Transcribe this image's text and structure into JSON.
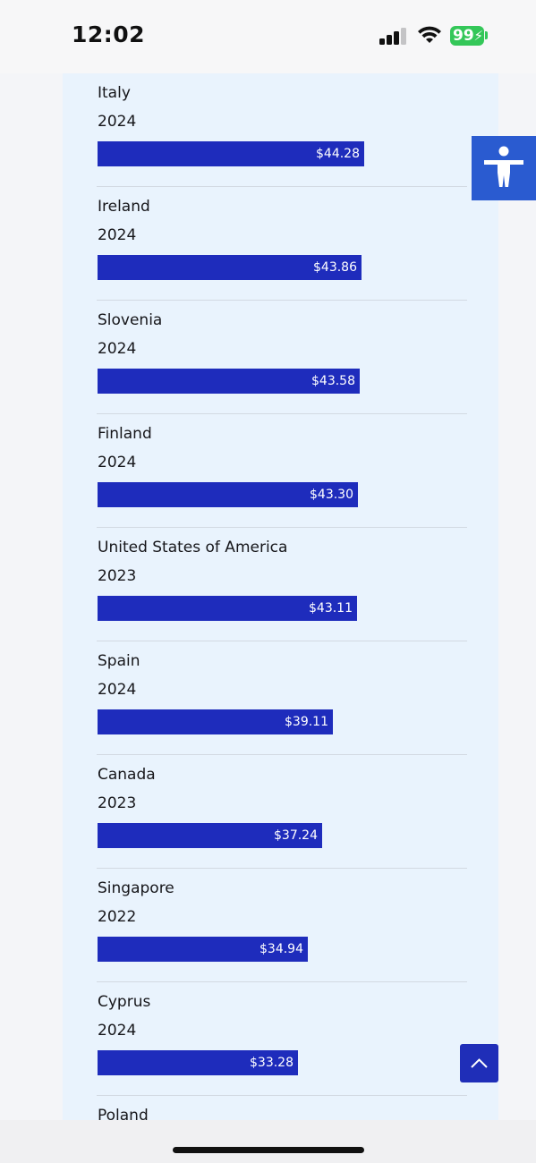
{
  "status_bar": {
    "time": "12:02",
    "battery": "99"
  },
  "items": [
    {
      "country": "Italy",
      "year": "2024",
      "value": 44.28,
      "label": "$44.28"
    },
    {
      "country": "Ireland",
      "year": "2024",
      "value": 43.86,
      "label": "$43.86"
    },
    {
      "country": "Slovenia",
      "year": "2024",
      "value": 43.58,
      "label": "$43.58"
    },
    {
      "country": "Finland",
      "year": "2024",
      "value": 43.3,
      "label": "$43.30"
    },
    {
      "country": "United States of America",
      "year": "2023",
      "value": 43.11,
      "label": "$43.11"
    },
    {
      "country": "Spain",
      "year": "2024",
      "value": 39.11,
      "label": "$39.11"
    },
    {
      "country": "Canada",
      "year": "2023",
      "value": 37.24,
      "label": "$37.24"
    },
    {
      "country": "Singapore",
      "year": "2022",
      "value": 34.94,
      "label": "$34.94"
    },
    {
      "country": "Cyprus",
      "year": "2024",
      "value": 33.28,
      "label": "$33.28"
    },
    {
      "country": "Poland",
      "year": "",
      "value": null,
      "label": ""
    }
  ],
  "colors": {
    "bar": "#1e2cbc",
    "panel": "#e9f3fd",
    "accessibility_button": "#2a5bd0"
  },
  "icons": {
    "accessibility": "accessibility-person-icon",
    "scroll_top": "chevron-up-icon"
  }
}
